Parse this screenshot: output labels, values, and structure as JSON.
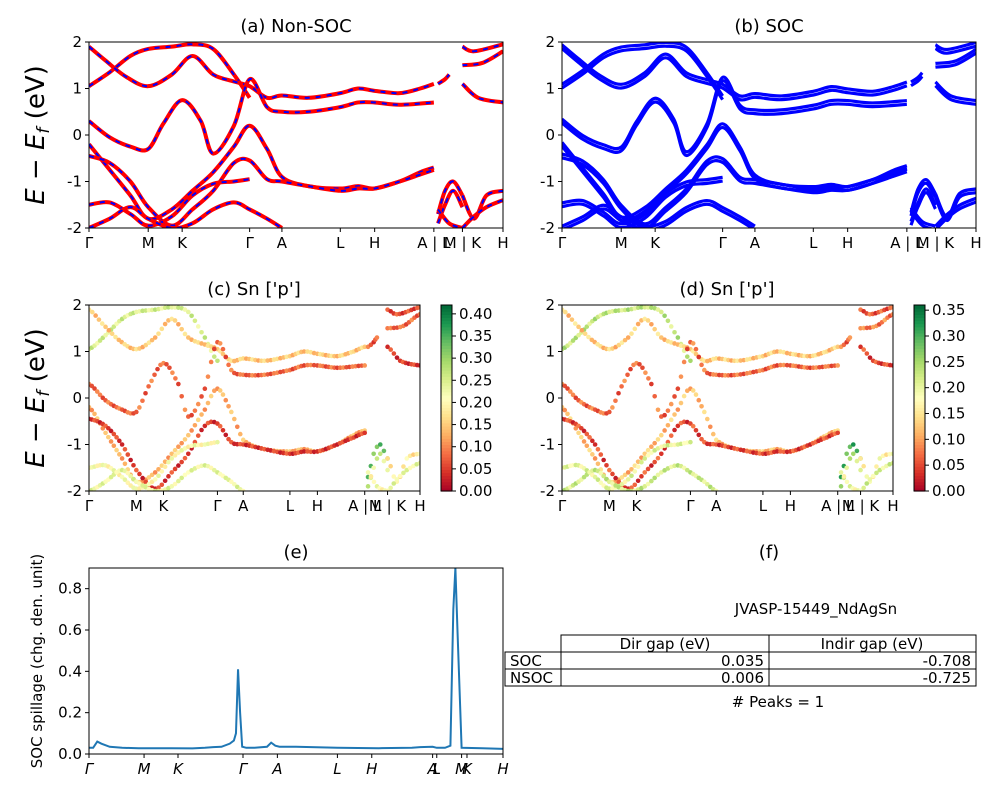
{
  "figure_title": "",
  "chart_data": [
    {
      "panel": "a",
      "type": "line",
      "title": "(a) Non-SOC",
      "ylabel": "E − E_f (eV)",
      "ylim": [
        -2,
        2
      ],
      "yticks": [
        -2,
        -1,
        0,
        1,
        2
      ],
      "kpath": [
        "Γ",
        "M",
        "K",
        "Γ",
        "A",
        "L",
        "H",
        "A | L",
        "M | K",
        "H"
      ],
      "kpath_pos": [
        0,
        0.143,
        0.225,
        0.388,
        0.466,
        0.607,
        0.69,
        0.833,
        0.902,
        1.0
      ],
      "segment_breaks": [
        0.833,
        0.902
      ],
      "colors": {
        "spin_up": "#0000ff",
        "spin_down": "#ff0000"
      },
      "series": [
        {
          "x": [
            0,
            0.05,
            0.1,
            0.143,
            0.2,
            0.25,
            0.3,
            0.35,
            0.388
          ],
          "y": [
            1.05,
            1.35,
            1.7,
            1.85,
            1.9,
            1.95,
            1.85,
            1.3,
            0.8
          ]
        },
        {
          "x": [
            0,
            0.04,
            0.09,
            0.143,
            0.2,
            0.25,
            0.3,
            0.35,
            0.388,
            0.43,
            0.466,
            0.53,
            0.607,
            0.65,
            0.69,
            0.75,
            0.8,
            0.833
          ],
          "y": [
            1.9,
            1.6,
            1.25,
            1.05,
            1.3,
            1.7,
            1.3,
            1.15,
            1.05,
            0.8,
            0.85,
            0.8,
            0.9,
            1.0,
            0.95,
            0.9,
            1.0,
            1.1
          ]
        },
        {
          "x": [
            0,
            0.05,
            0.1,
            0.143,
            0.18,
            0.225,
            0.27,
            0.3,
            0.35,
            0.388,
            0.43,
            0.466,
            0.53,
            0.607,
            0.65,
            0.69,
            0.75,
            0.833
          ],
          "y": [
            0.3,
            -0.05,
            -0.25,
            -0.3,
            0.25,
            0.75,
            0.3,
            -0.4,
            0.2,
            1.2,
            0.6,
            0.5,
            0.5,
            0.6,
            0.7,
            0.7,
            0.65,
            0.7
          ]
        },
        {
          "x": [
            0,
            0.05,
            0.1,
            0.143,
            0.2,
            0.25,
            0.3,
            0.35,
            0.388,
            0.43,
            0.466,
            0.53,
            0.607,
            0.65,
            0.69,
            0.75,
            0.8,
            0.833
          ],
          "y": [
            -0.2,
            -0.75,
            -1.3,
            -1.8,
            -1.6,
            -1.2,
            -0.8,
            -0.25,
            0.2,
            -0.3,
            -0.9,
            -1.1,
            -1.15,
            -1.1,
            -1.15,
            -1.0,
            -0.8,
            -0.7
          ]
        },
        {
          "x": [
            0,
            0.05,
            0.1,
            0.143,
            0.2,
            0.25,
            0.3,
            0.35,
            0.388,
            0.43,
            0.466,
            0.53,
            0.607,
            0.65,
            0.69,
            0.75,
            0.8,
            0.833
          ],
          "y": [
            -0.45,
            -0.6,
            -1.0,
            -1.55,
            -1.95,
            -1.6,
            -1.2,
            -0.6,
            -0.55,
            -0.95,
            -1.0,
            -1.1,
            -1.2,
            -1.15,
            -1.15,
            -1.0,
            -0.85,
            -0.75
          ]
        },
        {
          "x": [
            0,
            0.05,
            0.1,
            0.143,
            0.2,
            0.25,
            0.3,
            0.35,
            0.388
          ],
          "y": [
            -1.5,
            -1.45,
            -1.7,
            -1.95,
            -1.75,
            -1.3,
            -1.05,
            -1.0,
            -0.95
          ]
        },
        {
          "x": [
            0,
            0.05,
            0.1,
            0.143,
            0.2,
            0.25,
            0.3,
            0.35,
            0.388,
            0.43,
            0.466
          ],
          "y": [
            -2.0,
            -1.8,
            -1.55,
            -1.8,
            -2.0,
            -1.9,
            -1.6,
            -1.45,
            -1.6,
            -1.8,
            -2.0
          ]
        },
        {
          "x": [
            0.843,
            0.86,
            0.88,
            0.902
          ],
          "y": [
            -1.7,
            -1.2,
            -1.0,
            -1.3
          ]
        },
        {
          "x": [
            0.843,
            0.86,
            0.88,
            0.902
          ],
          "y": [
            -1.9,
            -1.5,
            -1.2,
            -1.55
          ]
        },
        {
          "x": [
            0.843,
            0.87,
            0.902
          ],
          "y": [
            -1.6,
            -1.9,
            -2.0
          ]
        },
        {
          "x": [
            0.902,
            0.93,
            0.96,
            1.0
          ],
          "y": [
            -1.3,
            -1.8,
            -1.3,
            -1.2
          ]
        },
        {
          "x": [
            0.902,
            0.93,
            0.96,
            1.0
          ],
          "y": [
            -2.0,
            -1.75,
            -1.55,
            -1.4
          ]
        },
        {
          "x": [
            0.902,
            0.94,
            1.0
          ],
          "y": [
            1.1,
            0.8,
            0.7
          ]
        },
        {
          "x": [
            0.902,
            0.95,
            1.0
          ],
          "y": [
            1.5,
            1.55,
            1.8
          ]
        },
        {
          "x": [
            0.843,
            0.86,
            0.87
          ],
          "y": [
            1.1,
            1.2,
            1.3
          ]
        },
        {
          "x": [
            0.902,
            0.93,
            1.0
          ],
          "y": [
            1.9,
            1.8,
            1.95
          ]
        }
      ]
    },
    {
      "panel": "b",
      "type": "line",
      "title": "(b) SOC",
      "ylim": [
        -2,
        2
      ],
      "yticks": [
        -2,
        -1,
        0,
        1,
        2
      ],
      "kpath": [
        "Γ",
        "M",
        "K",
        "Γ",
        "A",
        "L",
        "H",
        "A | L",
        "M | K",
        "H"
      ],
      "kpath_pos": [
        0,
        0.143,
        0.225,
        0.388,
        0.466,
        0.607,
        0.69,
        0.833,
        0.902,
        1.0
      ],
      "colors": {
        "bands": "#0000ff"
      },
      "series": [
        {
          "x": [
            0,
            0.05,
            0.1,
            0.143,
            0.2,
            0.25,
            0.3,
            0.35,
            0.388
          ],
          "y": [
            1.05,
            1.35,
            1.7,
            1.85,
            1.9,
            1.95,
            1.85,
            1.3,
            0.8
          ]
        },
        {
          "x": [
            0,
            0.04,
            0.09,
            0.143,
            0.2,
            0.25,
            0.3,
            0.35,
            0.388,
            0.43,
            0.466,
            0.53,
            0.607,
            0.65,
            0.69,
            0.75,
            0.8,
            0.833
          ],
          "y": [
            1.9,
            1.6,
            1.25,
            1.05,
            1.3,
            1.7,
            1.3,
            1.15,
            1.05,
            0.8,
            0.85,
            0.8,
            0.9,
            1.0,
            0.95,
            0.9,
            1.0,
            1.1
          ]
        },
        {
          "x": [
            0,
            0.05,
            0.1,
            0.143,
            0.18,
            0.225,
            0.27,
            0.3,
            0.35,
            0.388,
            0.43,
            0.466,
            0.53,
            0.607,
            0.65,
            0.69,
            0.75,
            0.833
          ],
          "y": [
            0.3,
            -0.05,
            -0.25,
            -0.3,
            0.25,
            0.75,
            0.3,
            -0.4,
            0.2,
            1.2,
            0.6,
            0.5,
            0.5,
            0.6,
            0.7,
            0.7,
            0.65,
            0.7
          ]
        },
        {
          "x": [
            0,
            0.05,
            0.1,
            0.143,
            0.2,
            0.25,
            0.3,
            0.35,
            0.388,
            0.43,
            0.466,
            0.53,
            0.607,
            0.65,
            0.69,
            0.75,
            0.8,
            0.833
          ],
          "y": [
            -0.2,
            -0.75,
            -1.3,
            -1.8,
            -1.6,
            -1.2,
            -0.8,
            -0.25,
            0.2,
            -0.3,
            -0.9,
            -1.1,
            -1.15,
            -1.1,
            -1.15,
            -1.0,
            -0.8,
            -0.7
          ]
        },
        {
          "x": [
            0,
            0.05,
            0.1,
            0.143,
            0.2,
            0.25,
            0.3,
            0.35,
            0.388,
            0.43,
            0.466,
            0.53,
            0.607,
            0.65,
            0.69,
            0.75,
            0.8,
            0.833
          ],
          "y": [
            -0.45,
            -0.6,
            -1.0,
            -1.55,
            -1.95,
            -1.6,
            -1.2,
            -0.6,
            -0.55,
            -0.95,
            -1.0,
            -1.1,
            -1.2,
            -1.15,
            -1.15,
            -1.0,
            -0.85,
            -0.75
          ]
        },
        {
          "x": [
            0,
            0.05,
            0.1,
            0.143,
            0.2,
            0.25,
            0.3,
            0.35,
            0.388
          ],
          "y": [
            -1.5,
            -1.45,
            -1.7,
            -1.95,
            -1.75,
            -1.3,
            -1.05,
            -1.0,
            -0.95
          ]
        },
        {
          "x": [
            0,
            0.05,
            0.1,
            0.143,
            0.2,
            0.25,
            0.3,
            0.35,
            0.388,
            0.43,
            0.466
          ],
          "y": [
            -2.0,
            -1.8,
            -1.55,
            -1.8,
            -2.0,
            -1.9,
            -1.6,
            -1.45,
            -1.6,
            -1.8,
            -2.0
          ]
        },
        {
          "x": [
            0.843,
            0.86,
            0.88,
            0.902
          ],
          "y": [
            -1.7,
            -1.2,
            -1.0,
            -1.3
          ]
        },
        {
          "x": [
            0.843,
            0.86,
            0.88,
            0.902
          ],
          "y": [
            -1.9,
            -1.5,
            -1.2,
            -1.55
          ]
        },
        {
          "x": [
            0.843,
            0.87,
            0.902
          ],
          "y": [
            -1.6,
            -1.9,
            -2.0
          ]
        },
        {
          "x": [
            0.902,
            0.93,
            0.96,
            1.0
          ],
          "y": [
            -1.3,
            -1.8,
            -1.3,
            -1.2
          ]
        },
        {
          "x": [
            0.902,
            0.93,
            0.96,
            1.0
          ],
          "y": [
            -2.0,
            -1.75,
            -1.55,
            -1.4
          ]
        },
        {
          "x": [
            0.902,
            0.94,
            1.0
          ],
          "y": [
            1.1,
            0.8,
            0.7
          ]
        },
        {
          "x": [
            0.902,
            0.95,
            1.0
          ],
          "y": [
            1.5,
            1.55,
            1.8
          ]
        },
        {
          "x": [
            0.843,
            0.86,
            0.87
          ],
          "y": [
            1.1,
            1.2,
            1.3
          ]
        },
        {
          "x": [
            0.902,
            0.93,
            1.0
          ],
          "y": [
            1.9,
            1.8,
            1.95
          ]
        }
      ]
    },
    {
      "panel": "c",
      "type": "scatter",
      "title": "(c)  Sn ['p']",
      "ylabel": "E − E_f (eV)",
      "ylim": [
        -2,
        2
      ],
      "yticks": [
        -2,
        -1,
        0,
        1,
        2
      ],
      "kpath": [
        "Γ",
        "M",
        "K",
        "Γ",
        "A",
        "L",
        "H",
        "A | L",
        "M | K",
        "H"
      ],
      "kpath_pos": [
        0,
        0.143,
        0.225,
        0.388,
        0.466,
        0.607,
        0.69,
        0.833,
        0.902,
        1.0
      ],
      "colormap": "RdYlGn",
      "colorbar_range": [
        0.0,
        0.42
      ],
      "colorbar_ticks": [
        "0.00",
        "0.05",
        "0.10",
        "0.15",
        "0.20",
        "0.25",
        "0.30",
        "0.35",
        "0.40"
      ],
      "weights_by_band": [
        0.22,
        0.12,
        0.05,
        0.1,
        0.02,
        0.18,
        0.2,
        0.3,
        0.22,
        0.18,
        0.15,
        0.2,
        0.02,
        0.05,
        0.04,
        0.03
      ]
    },
    {
      "panel": "d",
      "type": "scatter",
      "title": "(d) Sn ['p']",
      "ylim": [
        -2,
        2
      ],
      "yticks": [
        -2,
        -1,
        0,
        1,
        2
      ],
      "kpath": [
        "Γ",
        "M",
        "K",
        "Γ",
        "A",
        "L",
        "H",
        "A | L",
        "M | K",
        "H"
      ],
      "kpath_pos": [
        0,
        0.143,
        0.225,
        0.388,
        0.466,
        0.607,
        0.69,
        0.833,
        0.902,
        1.0
      ],
      "colormap": "RdYlGn",
      "colorbar_range": [
        0.0,
        0.36
      ],
      "colorbar_ticks": [
        "0.00",
        "0.05",
        "0.10",
        "0.15",
        "0.20",
        "0.25",
        "0.30",
        "0.35"
      ],
      "weights_by_band": [
        0.2,
        0.1,
        0.04,
        0.09,
        0.02,
        0.17,
        0.19,
        0.27,
        0.2,
        0.16,
        0.14,
        0.18,
        0.02,
        0.05,
        0.04,
        0.03
      ]
    },
    {
      "panel": "e",
      "type": "line",
      "title": "(e)",
      "ylabel": "SOC spillage (chg. den. unit)",
      "ylim": [
        0,
        0.9
      ],
      "yticks": [
        "0.0",
        "0.2",
        "0.4",
        "0.6",
        "0.8"
      ],
      "kpath": [
        "Γ",
        "M",
        "K",
        "Γ",
        "A",
        "L",
        "H",
        "A",
        "L",
        "M",
        "K",
        "H"
      ],
      "kpath_pos": [
        0,
        0.133,
        0.215,
        0.372,
        0.455,
        0.6,
        0.683,
        0.83,
        0.84,
        0.9,
        0.913,
        1.0
      ],
      "color": "#1f77b4",
      "x": [
        0,
        0.01,
        0.02,
        0.03,
        0.05,
        0.08,
        0.12,
        0.2,
        0.25,
        0.28,
        0.3,
        0.32,
        0.34,
        0.35,
        0.355,
        0.36,
        0.365,
        0.37,
        0.38,
        0.4,
        0.43,
        0.44,
        0.45,
        0.46,
        0.5,
        0.6,
        0.7,
        0.78,
        0.8,
        0.83,
        0.84,
        0.86,
        0.873,
        0.88,
        0.885,
        0.89,
        0.9,
        0.95,
        1.0
      ],
      "y": [
        0.03,
        0.03,
        0.06,
        0.05,
        0.035,
        0.03,
        0.028,
        0.028,
        0.027,
        0.03,
        0.033,
        0.035,
        0.05,
        0.065,
        0.1,
        0.41,
        0.2,
        0.035,
        0.03,
        0.03,
        0.035,
        0.055,
        0.04,
        0.035,
        0.035,
        0.03,
        0.028,
        0.03,
        0.033,
        0.035,
        0.03,
        0.03,
        0.04,
        0.7,
        0.9,
        0.6,
        0.03,
        0.028,
        0.025
      ]
    }
  ],
  "panel_f": {
    "title": "(f)",
    "material": "JVASP-15449_NdAgSn",
    "table": {
      "headers": [
        "Dir gap (eV)",
        "Indir gap (eV)"
      ],
      "rows": [
        {
          "label": "SOC",
          "dir": "0.035",
          "indir": "-0.708"
        },
        {
          "label": "NSOC",
          "dir": "0.006",
          "indir": "-0.725"
        }
      ]
    },
    "peaks_text": "# Peaks = 1"
  }
}
